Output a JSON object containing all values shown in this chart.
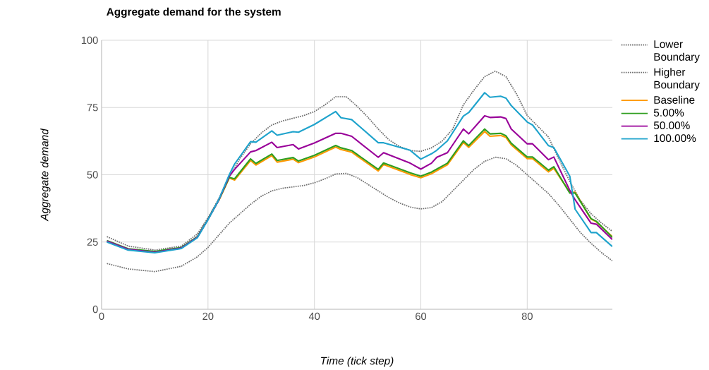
{
  "chart_data": {
    "type": "line",
    "title": "Aggregate demand for the system",
    "xlabel": "Time (tick step)",
    "ylabel": "Aggregate demand",
    "x": [
      1,
      5,
      10,
      15,
      18,
      20,
      22,
      24,
      25,
      28,
      29,
      32,
      33,
      36,
      37,
      40,
      44,
      45,
      47,
      52,
      53,
      58,
      60,
      62,
      63,
      65,
      68,
      69,
      72,
      73,
      75,
      76,
      77,
      80,
      81,
      84,
      85,
      88,
      89,
      92,
      93,
      96
    ],
    "series": [
      {
        "name": "Lower Boundary",
        "color": "#707070",
        "line_style": "dotted",
        "x": [
          1,
          5,
          10,
          15,
          18,
          20,
          22,
          24,
          26,
          28,
          30,
          32,
          34,
          36,
          38,
          40,
          42,
          44,
          46,
          48,
          50,
          52,
          54,
          56,
          58,
          60,
          62,
          64,
          66,
          68,
          70,
          72,
          74,
          76,
          78,
          80,
          82,
          84,
          86,
          88,
          90,
          92,
          94,
          96
        ],
        "values": [
          17,
          15,
          14,
          16,
          19.5,
          23,
          27.5,
          32,
          35.5,
          39,
          42,
          44,
          45,
          45.5,
          46,
          47,
          48.5,
          50.3,
          50.5,
          49,
          46.5,
          44,
          41.5,
          39.5,
          38,
          37.3,
          37.8,
          40,
          44,
          48,
          52,
          55,
          56.5,
          56,
          53.5,
          50,
          46.5,
          43,
          38.5,
          33.5,
          28.5,
          24.5,
          21,
          18
        ]
      },
      {
        "name": "Higher Boundary",
        "color": "#707070",
        "line_style": "dotted",
        "x": [
          1,
          5,
          10,
          15,
          18,
          20,
          22,
          24,
          26,
          28,
          30,
          32,
          34,
          36,
          38,
          40,
          42,
          44,
          46,
          48,
          50,
          52,
          54,
          56,
          58,
          60,
          62,
          64,
          66,
          68,
          70,
          72,
          74,
          76,
          78,
          80,
          82,
          84,
          86,
          88,
          90,
          92,
          94,
          96
        ],
        "values": [
          27,
          23.5,
          22,
          23.5,
          28,
          34,
          41,
          49,
          56,
          61.5,
          65.5,
          68.5,
          70,
          71,
          72,
          73.5,
          76,
          79,
          79,
          75.5,
          71.5,
          67,
          63,
          60.5,
          59,
          58.7,
          60,
          62.5,
          67,
          76,
          81.5,
          86.5,
          88.5,
          86.5,
          80,
          72,
          68,
          64,
          55.5,
          47.5,
          40.5,
          35.5,
          32,
          29
        ]
      },
      {
        "name": "Baseline",
        "color": "#ff9900",
        "values": [
          null,
          null,
          null,
          null,
          null,
          null,
          40.3,
          48.8,
          48.0,
          55.3,
          53.6,
          57.1,
          54.7,
          55.8,
          54.5,
          56.6,
          60.3,
          59.4,
          58.4,
          51.4,
          53.8,
          50.1,
          48.9,
          50.4,
          51.5,
          53.7,
          62,
          60.2,
          66.1,
          64.3,
          64.6,
          63.9,
          61.1,
          56,
          56,
          51.1,
          52.4,
          43.5,
          43.5,
          33.5,
          32.5,
          27
        ]
      },
      {
        "name": "5.00%",
        "color": "#2e9e1f",
        "values": [
          25.5,
          22.5,
          21.5,
          23,
          27,
          33.5,
          40.5,
          49,
          48.5,
          55.9,
          54.2,
          57.7,
          55.3,
          56.4,
          55.1,
          57.2,
          60.9,
          60,
          59,
          52,
          54.4,
          50.7,
          49.5,
          51,
          52.1,
          54.3,
          62.6,
          60.8,
          67,
          65.2,
          65.4,
          64.5,
          61.7,
          56.6,
          56.6,
          51.7,
          53,
          43.2,
          43.2,
          33.7,
          32.7,
          26.7
        ]
      },
      {
        "name": "50.00%",
        "color": "#990099",
        "values": [
          25.3,
          22.3,
          21.2,
          22.8,
          26.8,
          33.4,
          40.5,
          49.5,
          52,
          58.5,
          59,
          62.1,
          60.1,
          61.2,
          59.6,
          61.8,
          65.4,
          65.4,
          64.3,
          56.5,
          58.2,
          54.3,
          52.1,
          54.3,
          56.5,
          58.2,
          67,
          65.2,
          71.9,
          71.3,
          71.5,
          70.9,
          67,
          61.5,
          61.5,
          55.6,
          56.6,
          44.2,
          40.7,
          32,
          31.6,
          25.9
        ]
      },
      {
        "name": "100.00%",
        "color": "#1fa3cc",
        "values": [
          25,
          22,
          21,
          22.6,
          26.6,
          33.3,
          40.6,
          50,
          54,
          62.3,
          62.1,
          66.3,
          64.7,
          66,
          65.8,
          68.7,
          73.5,
          71.2,
          70.5,
          61.9,
          61.9,
          59.1,
          55.8,
          57.8,
          59.1,
          62.6,
          71.8,
          73.1,
          80.5,
          78.8,
          79.2,
          78.5,
          75.7,
          69.6,
          68.5,
          60.8,
          60.1,
          49.5,
          37.2,
          28.5,
          28.5,
          23.3
        ]
      }
    ],
    "xlim": [
      0,
      96
    ],
    "ylim": [
      0,
      100
    ],
    "xticks": [
      0,
      20,
      40,
      60,
      80
    ],
    "yticks": [
      0,
      25,
      50,
      75,
      100
    ],
    "grid": true,
    "legend": "right",
    "marker": "none",
    "line_style": "solid"
  }
}
